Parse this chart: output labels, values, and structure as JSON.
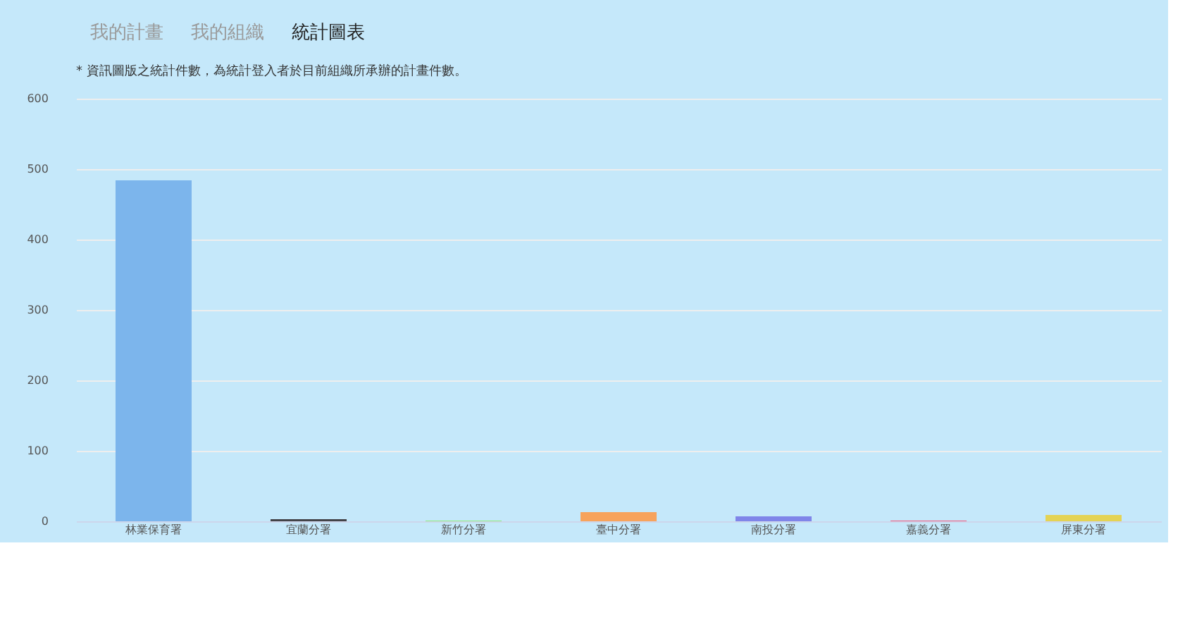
{
  "chart_data": {
    "type": "bar",
    "subtitle": "* 資訊圖版之統計件數，為統計登入者於目前組織所承辦的計畫件數。",
    "annotations": [
      "我的計畫",
      "我的組織",
      "統計圖表"
    ],
    "categories": [
      "林業保育署",
      "宜蘭分署",
      "新竹分署",
      "臺中分署",
      "南投分署",
      "嘉義分署",
      "屏東分署"
    ],
    "values": [
      484,
      3,
      1,
      13,
      7,
      1,
      9
    ],
    "colors": [
      "#7cb5ec",
      "#434348",
      "#90ed7d",
      "#f7a35c",
      "#8085e9",
      "#f15c80",
      "#e4d354"
    ],
    "ylim": [
      0,
      600
    ],
    "yticks": [
      0,
      100,
      200,
      300,
      400,
      500,
      600
    ],
    "grid": "y"
  }
}
